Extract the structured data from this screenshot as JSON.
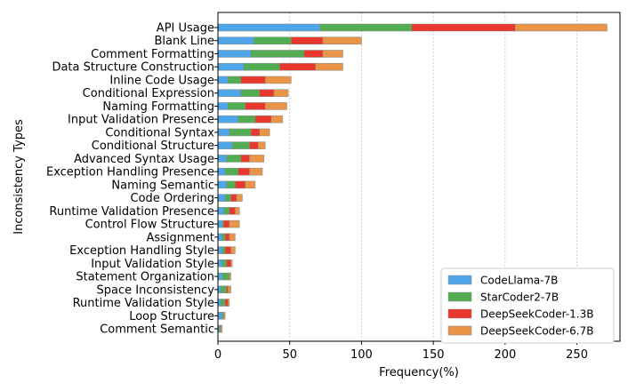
{
  "chart_data": {
    "type": "bar",
    "orientation": "horizontal",
    "stacked": true,
    "xlabel": "Frequency(%)",
    "ylabel": "Inconsistency Types",
    "xlim": [
      0,
      280
    ],
    "xticks": [
      0,
      50,
      100,
      150,
      200,
      250
    ],
    "grid": "vertical dashed",
    "legend_position": "bottom-right",
    "categories": [
      "API Usage",
      "Blank Line",
      "Comment Formatting",
      "Data Structure Construction",
      "Inline Code Usage",
      "Conditional Expression",
      "Naming Formatting",
      "Input Validation Presence",
      "Conditional Syntax",
      "Conditional Structure",
      "Advanced Syntax Usage",
      "Exception Handling Presence",
      "Naming Semantic",
      "Code Ordering",
      "Runtime Validation Presence",
      "Control Flow Structure",
      "Assignment",
      "Exception Handling Style",
      "Input Validation Style",
      "Statement Organization",
      "Space Inconsistency",
      "Runtime Validation Style",
      "Loop Structure",
      "Comment Semantic"
    ],
    "series": [
      {
        "name": "CodeLlama-7B",
        "color": "#4ea6e8",
        "values": [
          71,
          25,
          23,
          18,
          7,
          16,
          7,
          14,
          8,
          10,
          6,
          5,
          6,
          5,
          4,
          3,
          3,
          3,
          3,
          3,
          2,
          2,
          3,
          1
        ]
      },
      {
        "name": "StarCoder2-7B",
        "color": "#52ad52",
        "values": [
          64,
          26,
          37,
          25,
          9,
          13,
          12,
          12,
          15,
          12,
          10,
          9,
          6,
          4,
          4,
          1,
          2,
          2,
          3,
          5,
          4,
          3,
          1,
          1
        ]
      },
      {
        "name": "DeepSeekCoder-1.3B",
        "color": "#e8382e",
        "values": [
          72,
          22,
          13,
          25,
          17,
          10,
          14,
          11,
          6,
          6,
          6,
          8,
          7,
          4,
          4,
          4,
          3,
          4,
          3,
          0,
          1,
          2,
          0,
          0
        ]
      },
      {
        "name": "DeepSeekCoder-6.7B",
        "color": "#ea9448",
        "values": [
          64,
          27,
          14,
          19,
          18,
          10,
          15,
          8,
          7,
          5,
          10,
          9,
          7,
          4,
          3,
          7,
          4,
          3,
          1,
          1,
          2,
          1,
          1,
          1
        ]
      }
    ]
  }
}
